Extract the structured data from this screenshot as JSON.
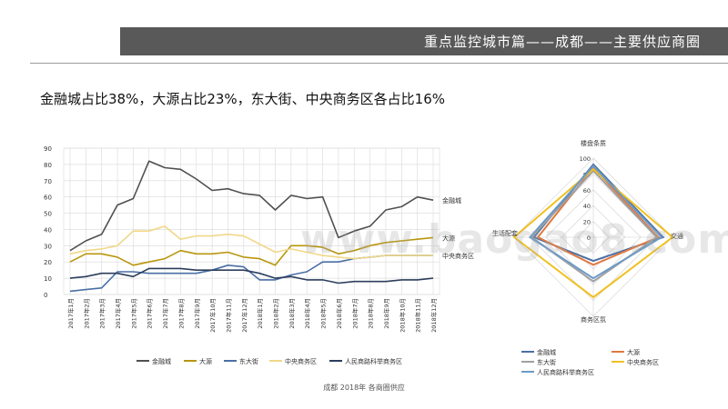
{
  "header": {
    "title": "重点监控城市篇——成都——主要供应商圈",
    "subtitle": "金融城占比38%，大源占比23%，东大街、中央商务区各占比16%"
  },
  "caption": "成都 2018年 各商圈供应",
  "watermark": "www.baogao8.com",
  "colors": {
    "jinrongcheng": "#505050",
    "dayuan": "#B8960C",
    "dongdajie": "#4A6FA5",
    "zhongyang": "#F0D888",
    "renmin": "#2C3E5C",
    "radar_renmin": "#6B9BC8",
    "radar_zhongyang": "#F0C020",
    "radar_dongdajie": "#A0A0A0",
    "radar_dayuan": "#E07840"
  },
  "chart_data": [
    {
      "type": "line",
      "x": [
        "2017年1月",
        "2017年2月",
        "2017年3月",
        "2017年4月",
        "2017年5月",
        "2017年6月",
        "2017年7月",
        "2017年8月",
        "2017年9月",
        "2017年10月",
        "2017年11月",
        "2017年12月",
        "2018年1月",
        "2018年2月",
        "2018年3月",
        "2018年4月",
        "2018年5月",
        "2018年6月",
        "2018年7月",
        "2018年8月",
        "2018年9月",
        "2018年10月",
        "2018年11月",
        "2018年12月"
      ],
      "ylim": [
        0,
        90
      ],
      "yticks": [
        0,
        10,
        20,
        30,
        40,
        50,
        60,
        70,
        80,
        90
      ],
      "series": [
        {
          "name": "金融城",
          "color": "#505050",
          "label": "金融城",
          "values": [
            27,
            33,
            37,
            55,
            59,
            82,
            78,
            77,
            71,
            64,
            65,
            62,
            61,
            52,
            61,
            59,
            60,
            35,
            39,
            42,
            52,
            54,
            60,
            58
          ]
        },
        {
          "name": "大源",
          "color": "#B8960C",
          "label": "大源",
          "values": [
            20,
            25,
            25,
            23,
            18,
            20,
            22,
            27,
            25,
            25,
            26,
            23,
            22,
            18,
            30,
            30,
            29,
            25,
            27,
            30,
            32,
            33,
            34,
            35
          ]
        },
        {
          "name": "东大街",
          "color": "#4A6FA5",
          "label": "",
          "values": [
            2,
            3,
            4,
            14,
            14,
            13,
            13,
            13,
            13,
            15,
            18,
            17,
            9,
            9,
            12,
            14,
            20,
            20,
            22,
            23,
            24,
            24,
            24,
            24
          ]
        },
        {
          "name": "中央商务区",
          "color": "#F0D888",
          "label": "中央商务区",
          "values": [
            25,
            27,
            28,
            30,
            39,
            39,
            42,
            34,
            36,
            36,
            37,
            36,
            31,
            26,
            28,
            26,
            24,
            23,
            22,
            23,
            24,
            24,
            24,
            24
          ]
        },
        {
          "name": "人民商路科举商务区",
          "color": "#2C3E5C",
          "label": "",
          "values": [
            10,
            11,
            13,
            13,
            11,
            16,
            16,
            16,
            15,
            15,
            15,
            15,
            13,
            10,
            11,
            9,
            9,
            7,
            8,
            8,
            8,
            9,
            9,
            10
          ]
        }
      ],
      "legend": "bottom",
      "grid": "both"
    },
    {
      "type": "radar",
      "axes": [
        "楼盘条质",
        "交通",
        "商务区氛",
        "生活配套"
      ],
      "rlim": [
        0,
        100
      ],
      "rticks": [
        0,
        20,
        40,
        60,
        80,
        100
      ],
      "series": [
        {
          "name": "金融城",
          "color": "#4A6FA5",
          "values": [
            92,
            88,
            30,
            75
          ]
        },
        {
          "name": "大源",
          "color": "#E07840",
          "values": [
            88,
            82,
            35,
            70
          ]
        },
        {
          "name": "东大街",
          "color": "#A0A0A0",
          "values": [
            84,
            80,
            56,
            78
          ]
        },
        {
          "name": "中央商务区",
          "color": "#F0C020",
          "values": [
            86,
            100,
            76,
            100
          ]
        },
        {
          "name": "人民商路科举商务区",
          "color": "#6B9BC8",
          "values": [
            90,
            86,
            52,
            80
          ]
        }
      ],
      "legend": "bottom"
    }
  ]
}
